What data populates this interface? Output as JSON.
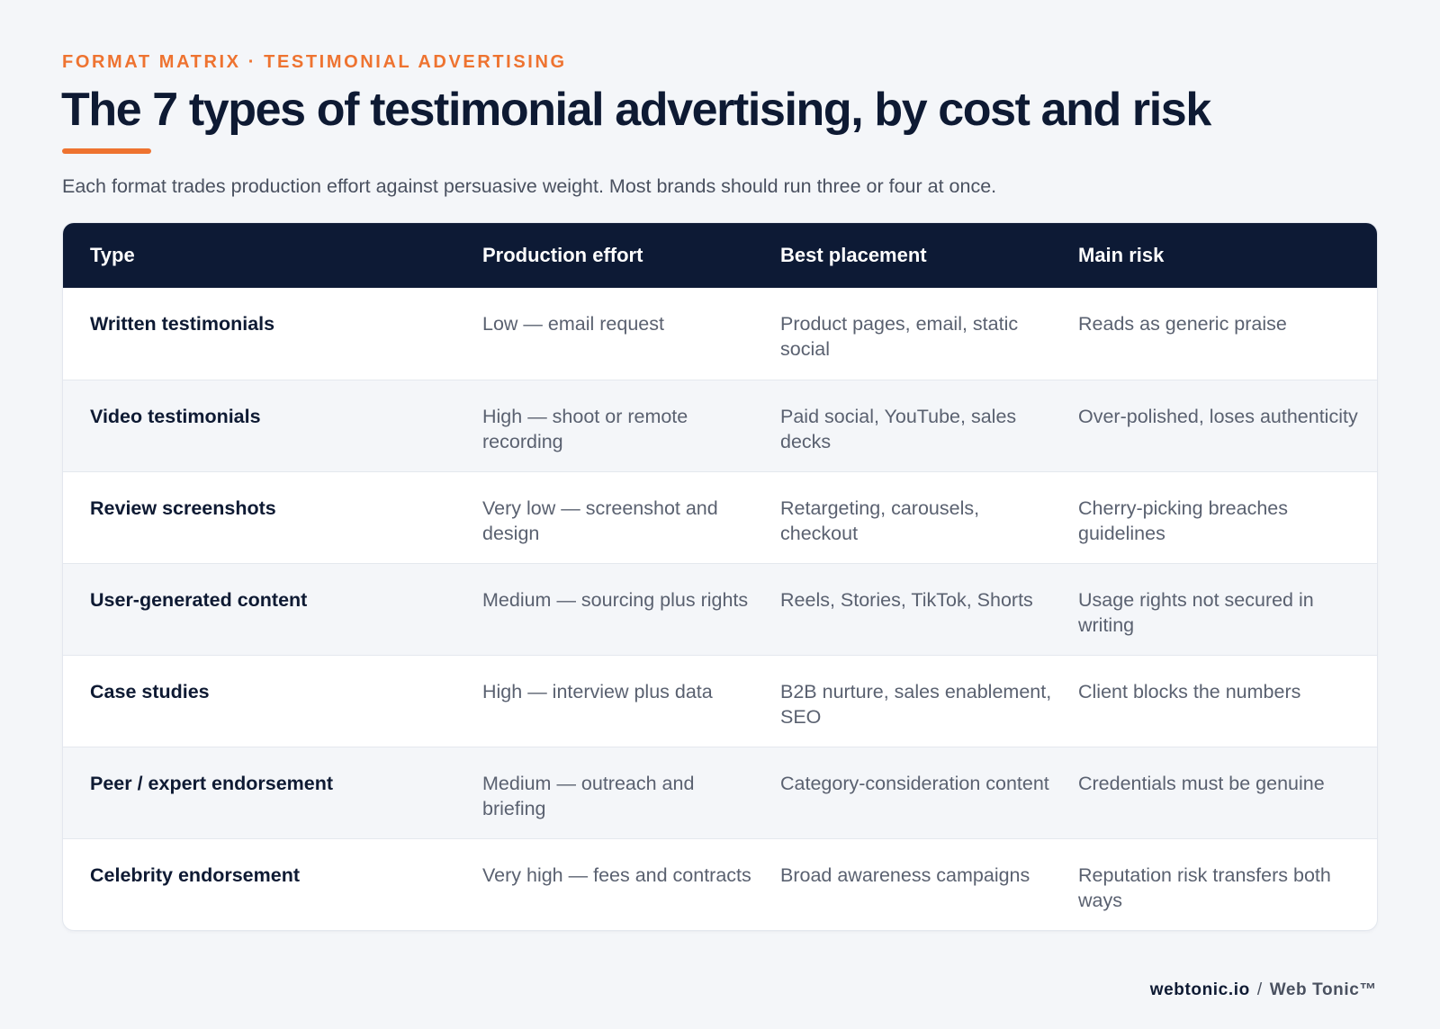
{
  "header": {
    "eyebrow": "FORMAT MATRIX · TESTIMONIAL ADVERTISING",
    "title": "The 7 types of testimonial advertising, by cost and risk",
    "subtitle": "Each format trades production effort against persuasive weight. Most brands should run three or four at once."
  },
  "table": {
    "columns": [
      "Type",
      "Production effort",
      "Best placement",
      "Main risk"
    ],
    "rows": [
      {
        "type": "Written testimonials",
        "effort": "Low — email request",
        "placement": "Product pages, email, static social",
        "risk": "Reads as generic praise"
      },
      {
        "type": "Video testimonials",
        "effort": "High — shoot or remote recording",
        "placement": "Paid social, YouTube, sales decks",
        "risk": "Over-polished, loses authenticity"
      },
      {
        "type": "Review screenshots",
        "effort": "Very low — screenshot and design",
        "placement": "Retargeting, carousels, checkout",
        "risk": "Cherry-picking breaches guidelines"
      },
      {
        "type": "User-generated content",
        "effort": "Medium — sourcing plus rights",
        "placement": "Reels, Stories, TikTok, Shorts",
        "risk": "Usage rights not secured in writing"
      },
      {
        "type": "Case studies",
        "effort": "High — interview plus data",
        "placement": "B2B nurture, sales enablement, SEO",
        "risk": "Client blocks the numbers"
      },
      {
        "type": "Peer / expert endorsement",
        "effort": "Medium — outreach and briefing",
        "placement": "Category-consideration content",
        "risk": "Credentials must be genuine"
      },
      {
        "type": "Celebrity endorsement",
        "effort": "Very high — fees and contracts",
        "placement": "Broad awareness campaigns",
        "risk": "Reputation risk transfers both ways"
      }
    ]
  },
  "footer": {
    "site": "webtonic.io",
    "separator": "/",
    "brand": "Web Tonic™"
  },
  "colors": {
    "accent": "#ee7330",
    "header_bg": "#0d1a35",
    "page_bg": "#f4f6f9",
    "alt_row_bg": "#f4f6f9"
  }
}
